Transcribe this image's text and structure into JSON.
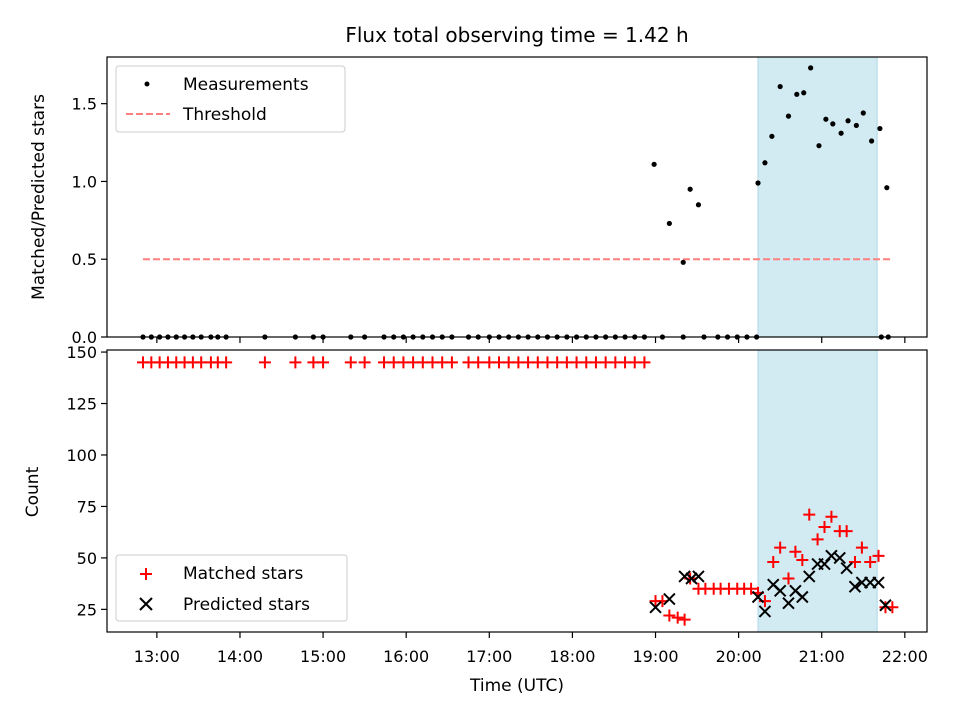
{
  "title": "Flux total observing time = 1.42 h",
  "xlabel": "Time (UTC)",
  "colors": {
    "measurements": "#000000",
    "threshold": "#ff7f7f",
    "matched": "#ff0000",
    "predicted": "#000000",
    "highlight": "#add8e6"
  },
  "chart_data": [
    {
      "type": "scatter",
      "ylabel": "Matched/Predicted stars",
      "xlim": [
        "12:24",
        "22:16"
      ],
      "ylim": [
        0,
        1.8
      ],
      "yticks": [
        "0.0",
        "0.5",
        "1.0",
        "1.5"
      ],
      "highlight_span": [
        "20:14",
        "21:40"
      ],
      "legend": {
        "placement": "upper-left",
        "entries": [
          "Measurements",
          "Threshold"
        ]
      },
      "series": [
        {
          "name": "Measurements",
          "marker": "dot",
          "points": [
            [
              "12:50",
              0
            ],
            [
              "12:56",
              0
            ],
            [
              "13:02",
              0
            ],
            [
              "13:08",
              0
            ],
            [
              "13:14",
              0
            ],
            [
              "13:20",
              0
            ],
            [
              "13:26",
              0
            ],
            [
              "13:32",
              0
            ],
            [
              "13:39",
              0
            ],
            [
              "13:44",
              0
            ],
            [
              "13:50",
              0
            ],
            [
              "14:18",
              0
            ],
            [
              "14:40",
              0
            ],
            [
              "14:53",
              0
            ],
            [
              "15:00",
              0
            ],
            [
              "15:20",
              0
            ],
            [
              "15:30",
              0
            ],
            [
              "15:44",
              0
            ],
            [
              "15:51",
              0
            ],
            [
              "15:58",
              0
            ],
            [
              "16:05",
              0
            ],
            [
              "16:12",
              0
            ],
            [
              "16:19",
              0
            ],
            [
              "16:26",
              0
            ],
            [
              "16:33",
              0
            ],
            [
              "16:45",
              0
            ],
            [
              "16:52",
              0
            ],
            [
              "17:00",
              0
            ],
            [
              "17:07",
              0
            ],
            [
              "17:14",
              0
            ],
            [
              "17:21",
              0
            ],
            [
              "17:28",
              0
            ],
            [
              "17:35",
              0
            ],
            [
              "17:42",
              0
            ],
            [
              "17:49",
              0
            ],
            [
              "17:56",
              0
            ],
            [
              "18:03",
              0
            ],
            [
              "18:10",
              0
            ],
            [
              "18:17",
              0
            ],
            [
              "18:24",
              0
            ],
            [
              "18:31",
              0
            ],
            [
              "18:38",
              0
            ],
            [
              "18:45",
              0
            ],
            [
              "18:52",
              0
            ],
            [
              "19:05",
              0
            ],
            [
              "19:20",
              0
            ],
            [
              "19:35",
              0
            ],
            [
              "19:45",
              0
            ],
            [
              "19:52",
              0
            ],
            [
              "19:59",
              0
            ],
            [
              "20:06",
              0
            ],
            [
              "20:13",
              0
            ],
            [
              "21:43",
              0
            ],
            [
              "21:48",
              0
            ],
            [
              "18:59",
              1.11
            ],
            [
              "19:10",
              0.73
            ],
            [
              "19:20",
              0.48
            ],
            [
              "19:25",
              0.95
            ],
            [
              "19:31",
              0.85
            ],
            [
              "20:14",
              0.99
            ],
            [
              "20:19",
              1.12
            ],
            [
              "20:24",
              1.29
            ],
            [
              "20:30",
              1.61
            ],
            [
              "20:36",
              1.42
            ],
            [
              "20:42",
              1.56
            ],
            [
              "20:47",
              1.57
            ],
            [
              "20:52",
              1.73
            ],
            [
              "20:58",
              1.23
            ],
            [
              "21:03",
              1.4
            ],
            [
              "21:08",
              1.37
            ],
            [
              "21:14",
              1.31
            ],
            [
              "21:19",
              1.39
            ],
            [
              "21:25",
              1.36
            ],
            [
              "21:30",
              1.44
            ],
            [
              "21:36",
              1.26
            ],
            [
              "21:42",
              1.34
            ],
            [
              "21:47",
              0.96
            ]
          ]
        },
        {
          "name": "Threshold",
          "line": "dashed",
          "x": [
            "12:50",
            "21:50"
          ],
          "value": 0.5
        }
      ]
    },
    {
      "type": "scatter",
      "ylabel": "Count",
      "xlabel": "Time (UTC)",
      "xlim": [
        "12:24",
        "22:16"
      ],
      "ylim": [
        14,
        151
      ],
      "yticks": [
        "25",
        "50",
        "75",
        "100",
        "125",
        "150"
      ],
      "xticks": [
        "13:00",
        "14:00",
        "15:00",
        "16:00",
        "17:00",
        "18:00",
        "19:00",
        "20:00",
        "21:00",
        "22:00"
      ],
      "highlight_span": [
        "20:14",
        "21:40"
      ],
      "legend": {
        "placement": "lower-left",
        "entries": [
          "Matched stars",
          "Predicted stars"
        ]
      },
      "series": [
        {
          "name": "Matched stars",
          "marker": "plus",
          "points": [
            [
              "12:50",
              145
            ],
            [
              "12:56",
              145
            ],
            [
              "13:02",
              145
            ],
            [
              "13:08",
              145
            ],
            [
              "13:14",
              145
            ],
            [
              "13:20",
              145
            ],
            [
              "13:26",
              145
            ],
            [
              "13:32",
              145
            ],
            [
              "13:39",
              145
            ],
            [
              "13:44",
              145
            ],
            [
              "13:50",
              145
            ],
            [
              "14:18",
              145
            ],
            [
              "14:40",
              145
            ],
            [
              "14:53",
              145
            ],
            [
              "15:00",
              145
            ],
            [
              "15:20",
              145
            ],
            [
              "15:30",
              145
            ],
            [
              "15:44",
              145
            ],
            [
              "15:51",
              145
            ],
            [
              "15:58",
              145
            ],
            [
              "16:05",
              145
            ],
            [
              "16:12",
              145
            ],
            [
              "16:19",
              145
            ],
            [
              "16:26",
              145
            ],
            [
              "16:33",
              145
            ],
            [
              "16:45",
              145
            ],
            [
              "16:52",
              145
            ],
            [
              "17:00",
              145
            ],
            [
              "17:07",
              145
            ],
            [
              "17:14",
              145
            ],
            [
              "17:21",
              145
            ],
            [
              "17:28",
              145
            ],
            [
              "17:35",
              145
            ],
            [
              "17:42",
              145
            ],
            [
              "17:49",
              145
            ],
            [
              "17:56",
              145
            ],
            [
              "18:03",
              145
            ],
            [
              "18:10",
              145
            ],
            [
              "18:17",
              145
            ],
            [
              "18:24",
              145
            ],
            [
              "18:31",
              145
            ],
            [
              "18:38",
              145
            ],
            [
              "18:45",
              145
            ],
            [
              "18:52",
              145
            ],
            [
              "19:00",
              29
            ],
            [
              "19:05",
              29
            ],
            [
              "19:10",
              22
            ],
            [
              "19:16",
              21
            ],
            [
              "19:21",
              20
            ],
            [
              "19:25",
              40
            ],
            [
              "19:31",
              35
            ],
            [
              "19:36",
              35
            ],
            [
              "19:42",
              35
            ],
            [
              "19:47",
              35
            ],
            [
              "19:53",
              35
            ],
            [
              "19:59",
              35
            ],
            [
              "20:04",
              35
            ],
            [
              "20:09",
              35
            ],
            [
              "20:14",
              33
            ],
            [
              "20:19",
              29
            ],
            [
              "20:25",
              48
            ],
            [
              "20:30",
              55
            ],
            [
              "20:36",
              40
            ],
            [
              "20:41",
              53
            ],
            [
              "20:46",
              49
            ],
            [
              "20:51",
              71
            ],
            [
              "20:57",
              59
            ],
            [
              "21:02",
              65
            ],
            [
              "21:07",
              70
            ],
            [
              "21:13",
              63
            ],
            [
              "21:18",
              63
            ],
            [
              "21:24",
              48
            ],
            [
              "21:29",
              55
            ],
            [
              "21:35",
              48
            ],
            [
              "21:41",
              51
            ],
            [
              "21:46",
              26
            ],
            [
              "21:51",
              26
            ]
          ]
        },
        {
          "name": "Predicted stars",
          "marker": "x",
          "points": [
            [
              "19:00",
              26
            ],
            [
              "19:10",
              30
            ],
            [
              "19:21",
              41
            ],
            [
              "19:26",
              40
            ],
            [
              "19:31",
              41
            ],
            [
              "20:14",
              31
            ],
            [
              "20:19",
              24
            ],
            [
              "20:25",
              37
            ],
            [
              "20:30",
              34
            ],
            [
              "20:36",
              28
            ],
            [
              "20:41",
              34
            ],
            [
              "20:46",
              31
            ],
            [
              "20:51",
              41
            ],
            [
              "20:57",
              47
            ],
            [
              "21:02",
              47
            ],
            [
              "21:07",
              51
            ],
            [
              "21:13",
              50
            ],
            [
              "21:18",
              45
            ],
            [
              "21:24",
              36
            ],
            [
              "21:29",
              38
            ],
            [
              "21:35",
              38
            ],
            [
              "21:41",
              38
            ],
            [
              "21:46",
              27
            ]
          ]
        }
      ]
    }
  ]
}
